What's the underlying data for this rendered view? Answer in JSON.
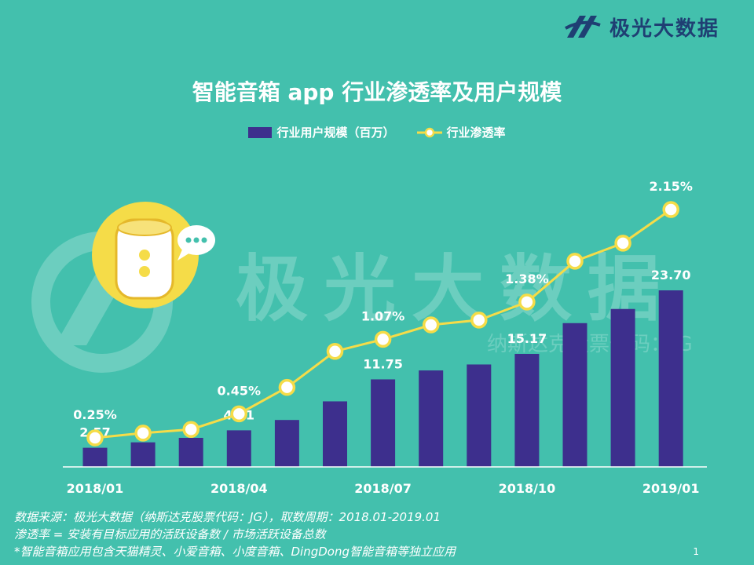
{
  "brand": {
    "name": "极光大数据"
  },
  "watermark": {
    "main": "极光大数据",
    "sub": "纳斯达克股票代码：JG"
  },
  "chart_data": {
    "type": "bar",
    "title": "智能音箱 app 行业渗透率及用户规模",
    "x": [
      "2018/01",
      "2018/02",
      "2018/03",
      "2018/04",
      "2018/05",
      "2018/06",
      "2018/07",
      "2018/08",
      "2018/09",
      "2018/10",
      "2018/11",
      "2018/12",
      "2019/01"
    ],
    "tick_labels": [
      "2018/01",
      "2018/04",
      "2018/07",
      "2018/10",
      "2019/01"
    ],
    "series": [
      {
        "name": "行业用户规模（百万）",
        "type": "bar",
        "color": "#3d2f8d",
        "values": [
          2.57,
          3.3,
          3.9,
          4.91,
          6.3,
          8.8,
          11.75,
          12.95,
          13.75,
          15.17,
          19.3,
          21.2,
          23.7
        ],
        "labels": [
          {
            "index": 0,
            "text": "2.57"
          },
          {
            "index": 3,
            "text": "4.91"
          },
          {
            "index": 6,
            "text": "11.75"
          },
          {
            "index": 9,
            "text": "15.17"
          },
          {
            "index": 12,
            "text": "23.70"
          }
        ]
      },
      {
        "name": "行业渗透率",
        "type": "line",
        "color": "#f5dc48",
        "values": [
          0.25,
          0.29,
          0.32,
          0.45,
          0.67,
          0.97,
          1.07,
          1.19,
          1.23,
          1.38,
          1.72,
          1.87,
          2.15
        ],
        "labels": [
          {
            "index": 0,
            "text": "0.25%"
          },
          {
            "index": 3,
            "text": "0.45%"
          },
          {
            "index": 6,
            "text": "1.07%"
          },
          {
            "index": 9,
            "text": "1.38%"
          },
          {
            "index": 12,
            "text": "2.15%"
          }
        ]
      }
    ],
    "legend": "top-center",
    "grid": false
  },
  "notes": [
    "数据来源：极光大数据（纳斯达克股票代码：JG），取数周期：2018.01-2019.01",
    "渗透率 = 安装有目标应用的活跃设备数 / 市场活跃设备总数",
    "*智能音箱应用包含天猫精灵、小爱音箱、小度音箱、DingDong智能音箱等独立应用"
  ],
  "page_number": "1"
}
